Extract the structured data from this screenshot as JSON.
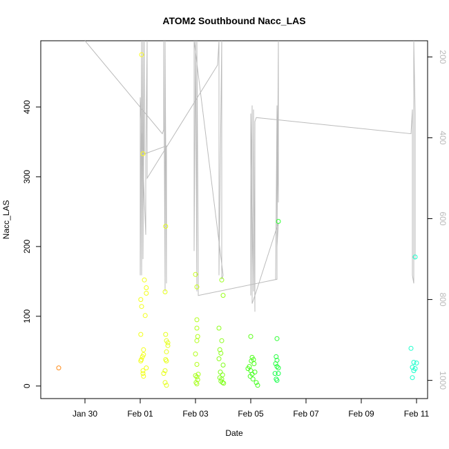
{
  "chart_data": {
    "type": "scatter",
    "title": "ATOM2 Southbound Nacc_LAS",
    "xlabel": "Date",
    "ylabel": "Nacc_LAS",
    "xlim": [
      -3.6,
      10.4
    ],
    "ylim": [
      -18,
      495
    ],
    "x_ticks": [
      {
        "value": -2,
        "label": "Jan 30"
      },
      {
        "value": 0,
        "label": "Feb 01"
      },
      {
        "value": 2,
        "label": "Feb 03"
      },
      {
        "value": 4,
        "label": "Feb 05"
      },
      {
        "value": 6,
        "label": "Feb 07"
      },
      {
        "value": 8,
        "label": "Feb 09"
      },
      {
        "value": 10,
        "label": "Feb 11"
      }
    ],
    "y_ticks": [
      {
        "value": 0,
        "label": "0"
      },
      {
        "value": 100,
        "label": "100"
      },
      {
        "value": 200,
        "label": "200"
      },
      {
        "value": 300,
        "label": "300"
      },
      {
        "value": 400,
        "label": "400"
      }
    ],
    "secondary_axis": {
      "label_color": "#b8b8b8",
      "reversed": true,
      "range": [
        160,
        1045
      ],
      "ticks": [
        {
          "value": 200,
          "label": "200"
        },
        {
          "value": 400,
          "label": "400"
        },
        {
          "value": 600,
          "label": "600"
        },
        {
          "value": 800,
          "label": "800"
        },
        {
          "value": 1000,
          "label": "1000"
        }
      ]
    },
    "series": [
      {
        "name": "Nacc_LAS",
        "kind": "points",
        "points": [
          {
            "x": -2.95,
            "y": 26,
            "color": "#ff8c1a"
          },
          {
            "x": 0.05,
            "y": 475,
            "color": "#ffff1a"
          },
          {
            "x": 0.1,
            "y": 333,
            "color": "#ffff1a"
          },
          {
            "x": 0.15,
            "y": 152,
            "color": "#f2ff1a"
          },
          {
            "x": 0.22,
            "y": 141,
            "color": "#f2ff1a"
          },
          {
            "x": 0.22,
            "y": 133,
            "color": "#f2ff1a"
          },
          {
            "x": 0.02,
            "y": 124,
            "color": "#f2ff1a"
          },
          {
            "x": 0.05,
            "y": 114,
            "color": "#f2ff1a"
          },
          {
            "x": 0.18,
            "y": 101,
            "color": "#f2ff1a"
          },
          {
            "x": 0.02,
            "y": 74,
            "color": "#f2ff1a"
          },
          {
            "x": 0.12,
            "y": 52,
            "color": "#f2ff1a"
          },
          {
            "x": 0.12,
            "y": 45,
            "color": "#f2ff1a"
          },
          {
            "x": 0.08,
            "y": 42,
            "color": "#f2ff1a"
          },
          {
            "x": 0.04,
            "y": 38,
            "color": "#f2ff1a"
          },
          {
            "x": 0.02,
            "y": 36,
            "color": "#f2ff1a"
          },
          {
            "x": 0.22,
            "y": 26,
            "color": "#f2ff1a"
          },
          {
            "x": 0.1,
            "y": 22,
            "color": "#f2ff1a"
          },
          {
            "x": 0.1,
            "y": 18,
            "color": "#f2ff1a"
          },
          {
            "x": 0.12,
            "y": 14,
            "color": "#f2ff1a"
          },
          {
            "x": 0.92,
            "y": 229,
            "color": "#e6ff1a"
          },
          {
            "x": 0.9,
            "y": 135,
            "color": "#e6ff1a"
          },
          {
            "x": 0.92,
            "y": 74,
            "color": "#e6ff1a"
          },
          {
            "x": 0.95,
            "y": 65,
            "color": "#e6ff1a"
          },
          {
            "x": 1.0,
            "y": 62,
            "color": "#e6ff1a"
          },
          {
            "x": 1.0,
            "y": 58,
            "color": "#e6ff1a"
          },
          {
            "x": 0.95,
            "y": 49,
            "color": "#e6ff1a"
          },
          {
            "x": 0.92,
            "y": 38,
            "color": "#e6ff1a"
          },
          {
            "x": 0.95,
            "y": 36,
            "color": "#e6ff1a"
          },
          {
            "x": 0.9,
            "y": 22,
            "color": "#e6ff1a"
          },
          {
            "x": 0.85,
            "y": 18,
            "color": "#e6ff1a"
          },
          {
            "x": 0.9,
            "y": 5,
            "color": "#e6ff1a"
          },
          {
            "x": 0.95,
            "y": 1,
            "color": "#e6ff1a"
          },
          {
            "x": 2.0,
            "y": 160,
            "color": "#c8ff1a"
          },
          {
            "x": 2.05,
            "y": 142,
            "color": "#c8ff1a"
          },
          {
            "x": 2.05,
            "y": 95,
            "color": "#b3ff1a"
          },
          {
            "x": 2.05,
            "y": 83,
            "color": "#b3ff1a"
          },
          {
            "x": 2.08,
            "y": 71,
            "color": "#b3ff1a"
          },
          {
            "x": 2.05,
            "y": 65,
            "color": "#b3ff1a"
          },
          {
            "x": 2.0,
            "y": 46,
            "color": "#b3ff1a"
          },
          {
            "x": 2.05,
            "y": 31,
            "color": "#b3ff1a"
          },
          {
            "x": 2.1,
            "y": 17,
            "color": "#a6ff1a"
          },
          {
            "x": 2.0,
            "y": 15,
            "color": "#a6ff1a"
          },
          {
            "x": 2.05,
            "y": 13,
            "color": "#a6ff1a"
          },
          {
            "x": 2.08,
            "y": 9,
            "color": "#a6ff1a"
          },
          {
            "x": 2.02,
            "y": 5,
            "color": "#a6ff1a"
          },
          {
            "x": 2.05,
            "y": 3,
            "color": "#a6ff1a"
          },
          {
            "x": 2.95,
            "y": 152,
            "color": "#99ff1a"
          },
          {
            "x": 3.0,
            "y": 130,
            "color": "#99ff1a"
          },
          {
            "x": 2.85,
            "y": 83,
            "color": "#8cff1a"
          },
          {
            "x": 2.95,
            "y": 65,
            "color": "#8cff1a"
          },
          {
            "x": 2.88,
            "y": 52,
            "color": "#8cff1a"
          },
          {
            "x": 2.92,
            "y": 47,
            "color": "#8cff1a"
          },
          {
            "x": 2.85,
            "y": 39,
            "color": "#8cff1a"
          },
          {
            "x": 3.0,
            "y": 30,
            "color": "#7fff1a"
          },
          {
            "x": 2.9,
            "y": 20,
            "color": "#7fff1a"
          },
          {
            "x": 2.98,
            "y": 16,
            "color": "#7fff1a"
          },
          {
            "x": 2.88,
            "y": 12,
            "color": "#7fff1a"
          },
          {
            "x": 2.95,
            "y": 10,
            "color": "#7fff1a"
          },
          {
            "x": 2.92,
            "y": 7,
            "color": "#7fff1a"
          },
          {
            "x": 2.98,
            "y": 5,
            "color": "#7fff1a"
          },
          {
            "x": 3.02,
            "y": 4,
            "color": "#7fff1a"
          },
          {
            "x": 4.0,
            "y": 71,
            "color": "#5cff1a"
          },
          {
            "x": 4.05,
            "y": 41,
            "color": "#4dff1a"
          },
          {
            "x": 4.1,
            "y": 38,
            "color": "#4dff1a"
          },
          {
            "x": 4.02,
            "y": 36,
            "color": "#4dff1a"
          },
          {
            "x": 4.12,
            "y": 32,
            "color": "#4dff1a"
          },
          {
            "x": 3.95,
            "y": 28,
            "color": "#4dff1a"
          },
          {
            "x": 3.9,
            "y": 25,
            "color": "#4dff1a"
          },
          {
            "x": 4.0,
            "y": 22,
            "color": "#40ff1a"
          },
          {
            "x": 4.15,
            "y": 20,
            "color": "#40ff1a"
          },
          {
            "x": 4.05,
            "y": 17,
            "color": "#40ff1a"
          },
          {
            "x": 3.98,
            "y": 14,
            "color": "#40ff1a"
          },
          {
            "x": 4.08,
            "y": 10,
            "color": "#40ff1a"
          },
          {
            "x": 4.2,
            "y": 5,
            "color": "#40ff1a"
          },
          {
            "x": 4.25,
            "y": 1,
            "color": "#40ff1a"
          },
          {
            "x": 5.0,
            "y": 236,
            "color": "#2eff33"
          },
          {
            "x": 4.95,
            "y": 68,
            "color": "#2eff33"
          },
          {
            "x": 4.92,
            "y": 42,
            "color": "#26ff40"
          },
          {
            "x": 4.95,
            "y": 37,
            "color": "#26ff40"
          },
          {
            "x": 4.9,
            "y": 32,
            "color": "#26ff40"
          },
          {
            "x": 4.95,
            "y": 28,
            "color": "#26ff40"
          },
          {
            "x": 5.0,
            "y": 26,
            "color": "#26ff40"
          },
          {
            "x": 4.88,
            "y": 18,
            "color": "#1aff4d"
          },
          {
            "x": 5.0,
            "y": 18,
            "color": "#1aff4d"
          },
          {
            "x": 4.92,
            "y": 10,
            "color": "#1aff4d"
          },
          {
            "x": 4.95,
            "y": 8,
            "color": "#1aff4d"
          },
          {
            "x": 9.95,
            "y": 185,
            "color": "#1affcc"
          },
          {
            "x": 9.8,
            "y": 54,
            "color": "#1affcc"
          },
          {
            "x": 9.9,
            "y": 34,
            "color": "#1affcc"
          },
          {
            "x": 10.0,
            "y": 33,
            "color": "#1affcc"
          },
          {
            "x": 9.85,
            "y": 27,
            "color": "#1affcc"
          },
          {
            "x": 9.95,
            "y": 25,
            "color": "#1affcc"
          },
          {
            "x": 9.9,
            "y": 22,
            "color": "#1affcc"
          },
          {
            "x": 9.85,
            "y": 12,
            "color": "#1affcc"
          }
        ]
      },
      {
        "name": "secondary_track",
        "kind": "line",
        "color": "#bbbbbb",
        "axis": "secondary",
        "points": [
          {
            "x": -2.0,
            "y": 160
          },
          {
            "x": 0.8,
            "y": 390
          },
          {
            "x": 0.85,
            "y": 380
          },
          {
            "x": 0.85,
            "y": 160
          },
          {
            "x": 0.9,
            "y": 780
          },
          {
            "x": 0.9,
            "y": 160
          },
          {
            "x": 0.95,
            "y": 760
          },
          {
            "x": 0.95,
            "y": 420
          },
          {
            "x": 0.15,
            "y": 440
          },
          {
            "x": 0.15,
            "y": 160
          },
          {
            "x": 0.1,
            "y": 700
          },
          {
            "x": 0.1,
            "y": 160
          },
          {
            "x": 0.05,
            "y": 740
          },
          {
            "x": 0.05,
            "y": 160
          },
          {
            "x": 0.0,
            "y": 740
          },
          {
            "x": 0.0,
            "y": 300
          },
          {
            "x": 0.2,
            "y": 640
          },
          {
            "x": 0.2,
            "y": 460
          },
          {
            "x": 0.25,
            "y": 160
          },
          {
            "x": 0.25,
            "y": 500
          },
          {
            "x": 2.8,
            "y": 220
          },
          {
            "x": 2.85,
            "y": 160
          },
          {
            "x": 2.85,
            "y": 740
          },
          {
            "x": 2.95,
            "y": 160
          },
          {
            "x": 2.95,
            "y": 750
          },
          {
            "x": 3.0,
            "y": 740
          },
          {
            "x": 1.95,
            "y": 160
          },
          {
            "x": 1.95,
            "y": 680
          },
          {
            "x": 2.0,
            "y": 160
          },
          {
            "x": 2.05,
            "y": 780
          },
          {
            "x": 2.05,
            "y": 160
          },
          {
            "x": 2.1,
            "y": 680
          },
          {
            "x": 2.1,
            "y": 790
          },
          {
            "x": 4.95,
            "y": 750
          },
          {
            "x": 4.95,
            "y": 320
          },
          {
            "x": 4.9,
            "y": 750
          },
          {
            "x": 4.95,
            "y": 320
          },
          {
            "x": 5.0,
            "y": 560
          },
          {
            "x": 5.0,
            "y": 160
          },
          {
            "x": 4.95,
            "y": 670
          },
          {
            "x": 5.0,
            "y": 610
          },
          {
            "x": 4.2,
            "y": 780
          },
          {
            "x": 4.05,
            "y": 810
          },
          {
            "x": 4.05,
            "y": 320
          },
          {
            "x": 4.0,
            "y": 790
          },
          {
            "x": 4.0,
            "y": 340
          },
          {
            "x": 4.1,
            "y": 780
          },
          {
            "x": 4.1,
            "y": 330
          },
          {
            "x": 4.15,
            "y": 830
          },
          {
            "x": 4.15,
            "y": 360
          },
          {
            "x": 4.2,
            "y": 350
          },
          {
            "x": 9.8,
            "y": 390
          },
          {
            "x": 9.85,
            "y": 330
          },
          {
            "x": 9.85,
            "y": 740
          },
          {
            "x": 9.9,
            "y": 760
          },
          {
            "x": 9.9,
            "y": 160
          },
          {
            "x": 9.95,
            "y": 340
          },
          {
            "x": 9.95,
            "y": 700
          }
        ]
      }
    ]
  }
}
